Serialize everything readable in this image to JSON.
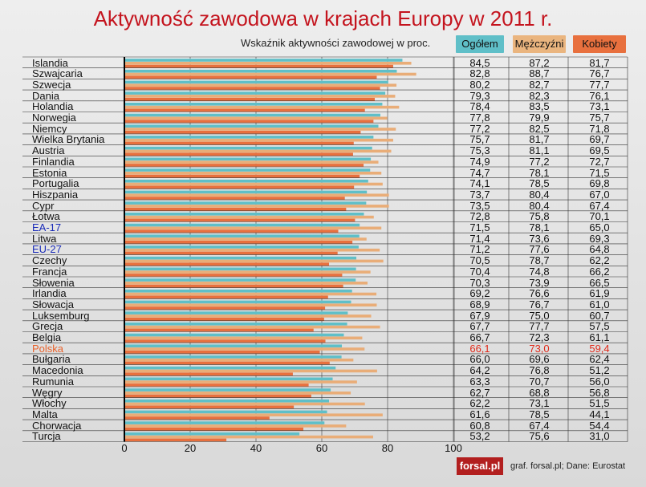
{
  "title": "Aktywność zawodowa w krajach Europy w 2011 r.",
  "subtitle": "Wskaźnik aktywności zawodowej w proc.",
  "footer": "graf. forsal.pl;  Dane: Eurostat",
  "logo_text": "forsal.pl",
  "colors": {
    "total": "#5fbfc8",
    "men": "#e9ad78",
    "women": "#e8703e",
    "eu_label": "#1a2bb8",
    "poland_label": "#e8612a",
    "poland_value": "#e02a1a",
    "title": "#c4141e"
  },
  "chart_data": {
    "type": "bar",
    "orientation": "horizontal",
    "title": "Aktywność zawodowa w krajach Europy w 2011 r.",
    "subtitle": "Wskaźnik aktywności zawodowej w proc.",
    "xlim": [
      0,
      100
    ],
    "xticks": [
      "0",
      "20",
      "40",
      "60",
      "80",
      "100"
    ],
    "categories": [
      "Islandia",
      "Szwajcaria",
      "Szwecja",
      "Dania",
      "Holandia",
      "Norwegia",
      "Niemcy",
      "Wielka Brytania",
      "Austria",
      "Finlandia",
      "Estonia",
      "Portugalia",
      "Hiszpania",
      "Cypr",
      "Łotwa",
      "EA-17",
      "Litwa",
      "EU-27",
      "Czechy",
      "Francja",
      "Słowenia",
      "Irlandia",
      "Słowacja",
      "Luksemburg",
      "Grecja",
      "Belgia",
      "Polska",
      "Bułgaria",
      "Macedonia",
      "Rumunia",
      "Węgry",
      "Włochy",
      "Malta",
      "Chorwacja",
      "Turcja"
    ],
    "series": [
      {
        "name": "Ogółem",
        "values": [
          84.5,
          82.8,
          80.2,
          79.3,
          78.4,
          77.8,
          77.2,
          75.7,
          75.3,
          74.9,
          74.7,
          74.1,
          73.7,
          73.5,
          72.8,
          71.5,
          71.4,
          71.2,
          70.5,
          70.4,
          70.3,
          69.2,
          68.9,
          67.9,
          67.7,
          66.7,
          66.1,
          66.0,
          64.2,
          63.3,
          62.7,
          62.2,
          61.6,
          60.8,
          53.2
        ],
        "labels": [
          "84,5",
          "82,8",
          "80,2",
          "79,3",
          "78,4",
          "77,8",
          "77,2",
          "75,7",
          "75,3",
          "74,9",
          "74,7",
          "74,1",
          "73,7",
          "73,5",
          "72,8",
          "71,5",
          "71,4",
          "71,2",
          "70,5",
          "70,4",
          "70,3",
          "69,2",
          "68,9",
          "67,9",
          "67,7",
          "66,7",
          "66,1",
          "66,0",
          "64,2",
          "63,3",
          "62,7",
          "62,2",
          "61,6",
          "60,8",
          "53,2"
        ]
      },
      {
        "name": "Mężczyźni",
        "values": [
          87.2,
          88.7,
          82.7,
          82.3,
          83.5,
          79.9,
          82.5,
          81.7,
          81.1,
          77.2,
          78.1,
          78.5,
          80.4,
          80.4,
          75.8,
          78.1,
          73.6,
          77.6,
          78.7,
          74.8,
          73.9,
          76.6,
          76.7,
          75.0,
          77.7,
          72.3,
          73.0,
          69.6,
          76.8,
          70.7,
          68.8,
          73.1,
          78.5,
          67.4,
          75.6
        ],
        "labels": [
          "87,2",
          "88,7",
          "82,7",
          "82,3",
          "83,5",
          "79,9",
          "82,5",
          "81,7",
          "81,1",
          "77,2",
          "78,1",
          "78,5",
          "80,4",
          "80,4",
          "75,8",
          "78,1",
          "73,6",
          "77,6",
          "78,7",
          "74,8",
          "73,9",
          "76,6",
          "76,7",
          "75,0",
          "77,7",
          "72,3",
          "73,0",
          "69,6",
          "76,8",
          "70,7",
          "68,8",
          "73,1",
          "78,5",
          "67,4",
          "75,6"
        ]
      },
      {
        "name": "Kobiety",
        "values": [
          81.7,
          76.7,
          77.7,
          76.1,
          73.1,
          75.7,
          71.8,
          69.7,
          69.5,
          72.7,
          71.5,
          69.8,
          67.0,
          67.4,
          70.1,
          65.0,
          69.3,
          64.8,
          62.2,
          66.2,
          66.5,
          61.9,
          61.0,
          60.7,
          57.5,
          61.1,
          59.4,
          62.4,
          51.2,
          56.0,
          56.8,
          51.5,
          44.1,
          54.4,
          31.0
        ],
        "labels": [
          "81,7",
          "76,7",
          "77,7",
          "76,1",
          "73,1",
          "75,7",
          "71,8",
          "69,7",
          "69,5",
          "72,7",
          "71,5",
          "69,8",
          "67,0",
          "67,4",
          "70,1",
          "65,0",
          "69,3",
          "64,8",
          "62,2",
          "66,2",
          "66,5",
          "61,9",
          "61,0",
          "60,7",
          "57,5",
          "61,1",
          "59,4",
          "62,4",
          "51,2",
          "56,0",
          "56,8",
          "51,5",
          "44,1",
          "54,4",
          "31,0"
        ]
      }
    ]
  }
}
